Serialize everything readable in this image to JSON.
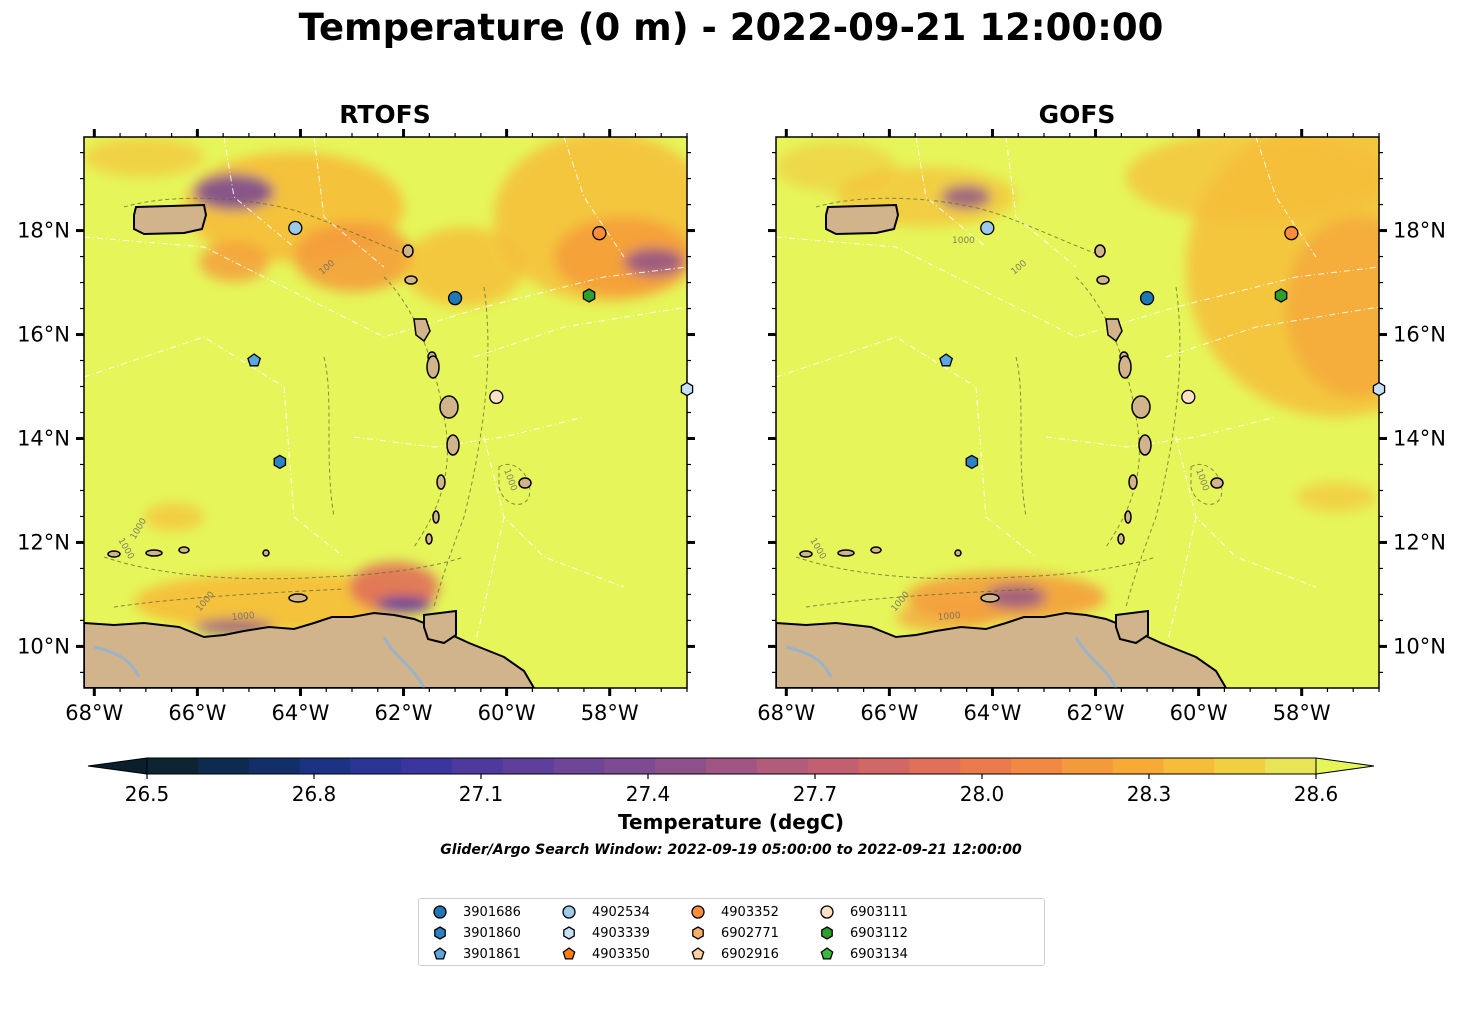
{
  "title": "Temperature (0 m) - 2022-09-21 12:00:00",
  "panels": [
    {
      "name": "RTOFS"
    },
    {
      "name": "GOFS"
    }
  ],
  "axes": {
    "x_ticks": [
      "68°W",
      "66°W",
      "64°W",
      "62°W",
      "60°W",
      "58°W"
    ],
    "y_ticks": [
      "18°N",
      "16°N",
      "14°N",
      "12°N",
      "10°N"
    ],
    "lon_range": [
      -68.2,
      -56.5
    ],
    "lat_range": [
      9.2,
      19.8
    ]
  },
  "contour_label": "1000",
  "contour_label_alt": "100",
  "colorbar": {
    "label": "Temperature (degC)",
    "ticks": [
      "26.5",
      "26.8",
      "27.1",
      "27.4",
      "27.7",
      "28.0",
      "28.3",
      "28.6"
    ],
    "colors": [
      "#0d2433",
      "#0e2a4f",
      "#132f6a",
      "#1a3382",
      "#2a3596",
      "#3b369f",
      "#4e3a9f",
      "#5f3f9c",
      "#6e4597",
      "#7d4b91",
      "#8e508b",
      "#a05584",
      "#b25b7b",
      "#c26071",
      "#d26866",
      "#e07059",
      "#ea7b4d",
      "#f18843",
      "#f59a3b",
      "#f7ab36",
      "#f6bd38",
      "#f0d041",
      "#e8e455"
    ],
    "extend_low": "#0b1e2b",
    "extend_high": "#e6f65a"
  },
  "search_window": "Glider/Argo Search Window: 2022-09-19 05:00:00 to 2022-09-21 12:00:00",
  "legend": [
    {
      "id": "3901686",
      "shape": "circle",
      "color": "#1f77b4"
    },
    {
      "id": "3901860",
      "shape": "hexagon",
      "color": "#2b83c6"
    },
    {
      "id": "3901861",
      "shape": "pentagon",
      "color": "#5aa6de"
    },
    {
      "id": "4902534",
      "shape": "circle",
      "color": "#9ecae9"
    },
    {
      "id": "4903339",
      "shape": "hexagon",
      "color": "#c6e1f5"
    },
    {
      "id": "4903350",
      "shape": "pentagon",
      "color": "#ff7f0e"
    },
    {
      "id": "4903352",
      "shape": "circle",
      "color": "#fd8d3c"
    },
    {
      "id": "6902771",
      "shape": "hexagon",
      "color": "#fdae6b"
    },
    {
      "id": "6902916",
      "shape": "pentagon",
      "color": "#fdd0a2"
    },
    {
      "id": "6903111",
      "shape": "circle",
      "color": "#fee0c4"
    },
    {
      "id": "6903112",
      "shape": "hexagon",
      "color": "#2ca02c"
    },
    {
      "id": "6903134",
      "shape": "pentagon",
      "color": "#3cb83c"
    }
  ],
  "floats": [
    {
      "id": "4902534",
      "lon": -64.1,
      "lat": 18.05
    },
    {
      "id": "4903352",
      "lon": -58.2,
      "lat": 17.95
    },
    {
      "id": "3901686",
      "lon": -61.0,
      "lat": 16.7
    },
    {
      "id": "6903112",
      "lon": -58.4,
      "lat": 16.75
    },
    {
      "id": "3901861",
      "lon": -64.9,
      "lat": 15.5
    },
    {
      "id": "6903111",
      "lon": -60.2,
      "lat": 14.8
    },
    {
      "id": "4903339",
      "lon": -56.5,
      "lat": 14.95
    },
    {
      "id": "3901860",
      "lon": -64.4,
      "lat": 13.55
    }
  ]
}
